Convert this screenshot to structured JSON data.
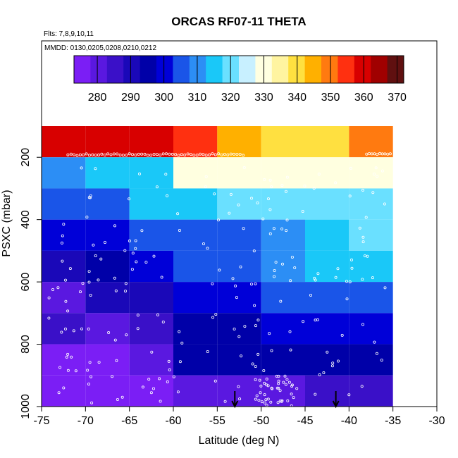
{
  "header": {
    "title": "ORCAS RF07-11 THETA",
    "flights_note": "Flts: 7,8,9,10,11",
    "dates_note": "MMDD: 0130,0205,0208,0210,0212"
  },
  "colors": {
    "palette": [
      "#7b1ef5",
      "#5a18e0",
      "#3a10c8",
      "#1a08b8",
      "#0000a8",
      "#0000d8",
      "#1a55e8",
      "#2c8ef5",
      "#1ac8f8",
      "#6ae0ff",
      "#c8f0ff",
      "#ffffe0",
      "#fff4a0",
      "#ffe040",
      "#ffb000",
      "#ff7a10",
      "#ff3010",
      "#d80000",
      "#a00000",
      "#601010"
    ],
    "dot": "#ffffff",
    "arrow": "#000000"
  },
  "chart_data": {
    "type": "heatmap",
    "title": "ORCAS RF07-11 THETA",
    "xlabel": "Latitude (deg N)",
    "ylabel": "PSXC (mbar)",
    "xlim": [
      -75,
      -30
    ],
    "ylim": [
      1000,
      100
    ],
    "x_ticks": [
      -75,
      -70,
      -65,
      -60,
      -55,
      -50,
      -45,
      -40,
      -35,
      -30
    ],
    "x_tick_labels": [
      "-75",
      "-70",
      "-65",
      "-60",
      "-55",
      "-50",
      "-45",
      "-40",
      "-35",
      "-30"
    ],
    "y_ticks": [
      200,
      400,
      600,
      800,
      1000
    ],
    "y_tick_labels": [
      "200",
      "400",
      "600",
      "800",
      "1000"
    ],
    "colorbar": {
      "range": [
        273,
        372
      ],
      "ticks": [
        280,
        290,
        300,
        310,
        320,
        330,
        340,
        350,
        360,
        370
      ],
      "tick_labels": [
        "280",
        "290",
        "300",
        "310",
        "320",
        "330",
        "340",
        "350",
        "360",
        "370"
      ]
    },
    "lat_bins": [
      [
        -75,
        -70
      ],
      [
        -70,
        -65
      ],
      [
        -65,
        -60
      ],
      [
        -60,
        -55
      ],
      [
        -55,
        -50
      ],
      [
        -50,
        -45
      ],
      [
        -45,
        -40
      ],
      [
        -40,
        -35
      ]
    ],
    "pressure_bins": [
      [
        100,
        200
      ],
      [
        200,
        300
      ],
      [
        300,
        400
      ],
      [
        400,
        500
      ],
      [
        500,
        600
      ],
      [
        600,
        700
      ],
      [
        700,
        800
      ],
      [
        800,
        900
      ],
      [
        900,
        1000
      ]
    ],
    "cells": [
      [
        362,
        362,
        362,
        355,
        343,
        341,
        341,
        351
      ],
      [
        309,
        317,
        317,
        329,
        331,
        331,
        331,
        330
      ],
      [
        305,
        305,
        314,
        316,
        322,
        322,
        322,
        319
      ],
      [
        301,
        301,
        305,
        303,
        307,
        312,
        314,
        318
      ],
      [
        289,
        296,
        299,
        303,
        304,
        310,
        313,
        313
      ],
      [
        282,
        288,
        292,
        300,
        302,
        303,
        306,
        306
      ],
      [
        283,
        280,
        284,
        295,
        297,
        298,
        298,
        298
      ],
      [
        274,
        274,
        279,
        295,
        295,
        294,
        294,
        294
      ],
      [
        271,
        271,
        271,
        281,
        281,
        280,
        283,
        285
      ]
    ],
    "legend": "none",
    "grid": false,
    "markers": [
      {
        "lat": -53,
        "pressure": 1000,
        "shape": "down-arrow"
      },
      {
        "lat": -41.5,
        "pressure": 1000,
        "shape": "down-arrow"
      }
    ]
  }
}
